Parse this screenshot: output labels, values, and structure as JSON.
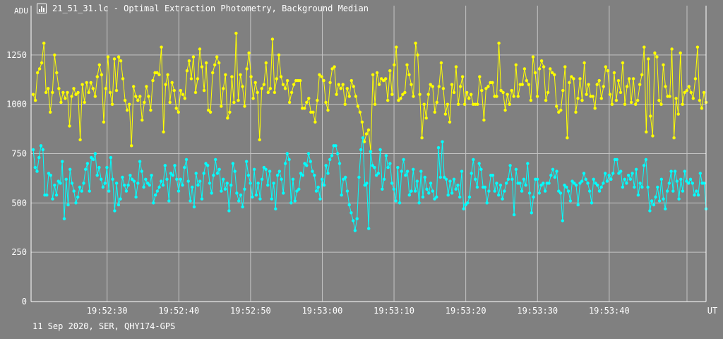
{
  "window": {
    "icon": "light-curve-icon",
    "title": "21_51_31.lc - Optimal Extraction Photometry, Background Median"
  },
  "footer": {
    "info": "11 Sep 2020, SER, QHY174-GPS"
  },
  "colors": {
    "background": "#808080",
    "grid": "#c4c4c4",
    "axis": "#ffffff",
    "series_yellow": "#ffff00",
    "series_cyan": "#00ffff"
  },
  "chart_data": {
    "type": "line",
    "ylabel": "ADU",
    "xlabel": "UT",
    "ylim": [
      0,
      1500
    ],
    "yticks": [
      0,
      250,
      500,
      750,
      1000,
      1250
    ],
    "xlim": [
      "19:52:19.4",
      "19:53:53.5"
    ],
    "xticks": [
      "19:52:30",
      "19:52:40",
      "19:52:50",
      "19:53:00",
      "19:53:10",
      "19:53:20",
      "19:53:30",
      "19:53:40"
    ],
    "grid": true,
    "markers": "filled-circle",
    "series": [
      {
        "color": "#ffff00",
        "x_start": "19:52:19.7",
        "x_end": "19:53:53.5",
        "values": [
          1050,
          1020,
          1160,
          1180,
          1210,
          1310,
          1060,
          1080,
          960,
          1060,
          1250,
          1160,
          1080,
          1010,
          1060,
          1030,
          1060,
          890,
          1040,
          1080,
          1050,
          1060,
          820,
          1100,
          1010,
          1110,
          1060,
          1110,
          1080,
          1040,
          1140,
          1200,
          1150,
          910,
          1080,
          1240,
          1060,
          1000,
          1230,
          1070,
          1240,
          1220,
          1130,
          1020,
          970,
          1000,
          790,
          1090,
          1040,
          1020,
          1040,
          920,
          1010,
          1090,
          1040,
          970,
          1120,
          1160,
          1160,
          1150,
          1290,
          860,
          1100,
          1150,
          1010,
          1110,
          1070,
          980,
          960,
          1070,
          1050,
          1030,
          1170,
          1220,
          1130,
          1240,
          1060,
          1130,
          1280,
          1190,
          1070,
          1210,
          970,
          960,
          1160,
          1200,
          1240,
          1210,
          990,
          1080,
          1150,
          930,
          960,
          1140,
          1010,
          1360,
          1020,
          1150,
          1090,
          990,
          1180,
          1260,
          1140,
          1030,
          1110,
          1060,
          820,
          1080,
          1100,
          1210,
          1060,
          1080,
          1330,
          1060,
          1130,
          1250,
          1140,
          1100,
          1080,
          1120,
          1010,
          1060,
          1100,
          1120,
          1120,
          1120,
          980,
          980,
          1010,
          1030,
          960,
          960,
          910,
          1020,
          1150,
          1140,
          1120,
          1010,
          970,
          1110,
          1180,
          1190,
          1050,
          1100,
          1080,
          1100,
          1000,
          1080,
          1040,
          1120,
          1090,
          1040,
          990,
          960,
          910,
          810,
          850,
          870,
          760,
          1150,
          1000,
          1160,
          1100,
          1130,
          1120,
          1130,
          1020,
          1170,
          1050,
          1200,
          1290,
          1020,
          1030,
          1050,
          1060,
          1200,
          1150,
          1100,
          1040,
          1310,
          1250,
          1050,
          830,
          1000,
          930,
          1050,
          1100,
          1090,
          960,
          1010,
          1090,
          1210,
          1080,
          950,
          1000,
          910,
          1100,
          1060,
          1190,
          1000,
          1090,
          1140,
          1000,
          1060,
          1030,
          1050,
          1000,
          1000,
          1000,
          1140,
          1070,
          920,
          1080,
          1090,
          1110,
          1110,
          1040,
          1040,
          1310,
          1070,
          1060,
          970,
          1050,
          1000,
          1070,
          1040,
          1200,
          1040,
          1100,
          1100,
          1180,
          1120,
          1100,
          1020,
          1240,
          1160,
          1040,
          1180,
          1220,
          1190,
          1020,
          1060,
          1180,
          1160,
          1150,
          990,
          960,
          970,
          1070,
          1190,
          830,
          1110,
          1140,
          1130,
          960,
          1030,
          1130,
          1020,
          1210,
          1050,
          1100,
          1040,
          1040,
          980,
          1100,
          1120,
          1030,
          1090,
          1190,
          1170,
          1050,
          1000,
          1160,
          1020,
          1120,
          1060,
          1210,
          1000,
          1090,
          1130,
          1010,
          1130,
          1000,
          1020,
          1100,
          1150,
          1290,
          860,
          1230,
          940,
          840,
          1260,
          1240,
          1020,
          1000,
          1200,
          1090,
          1040,
          1040,
          1280,
          830,
          1030,
          950,
          1260,
          1000,
          1060,
          1070,
          1090,
          1060,
          1030,
          1130,
          1290,
          1020,
          980,
          1060,
          1010
        ]
      },
      {
        "color": "#00ffff",
        "x_start": "19:52:19.7",
        "x_end": "19:53:53.5",
        "values": [
          770,
          680,
          660,
          730,
          790,
          770,
          540,
          540,
          650,
          640,
          520,
          590,
          540,
          610,
          600,
          710,
          420,
          620,
          490,
          670,
          600,
          560,
          500,
          530,
          580,
          560,
          600,
          670,
          700,
          560,
          730,
          720,
          750,
          640,
          680,
          620,
          580,
          600,
          680,
          560,
          730,
          620,
          460,
          600,
          490,
          520,
          630,
          590,
          560,
          590,
          640,
          620,
          610,
          530,
          600,
          710,
          660,
          580,
          620,
          600,
          590,
          640,
          500,
          540,
          560,
          580,
          610,
          590,
          690,
          620,
          510,
          650,
          640,
          690,
          620,
          560,
          620,
          590,
          680,
          720,
          610,
          510,
          580,
          480,
          650,
          590,
          610,
          520,
          650,
          700,
          690,
          600,
          550,
          640,
          720,
          650,
          670,
          560,
          620,
          570,
          600,
          460,
          590,
          700,
          660,
          550,
          510,
          540,
          480,
          570,
          710,
          640,
          600,
          530,
          670,
          540,
          600,
          520,
          620,
          680,
          670,
          590,
          660,
          520,
          600,
          470,
          640,
          660,
          620,
          550,
          700,
          750,
          720,
          500,
          620,
          510,
          560,
          570,
          650,
          640,
          700,
          690,
          750,
          710,
          660,
          640,
          560,
          580,
          520,
          620,
          590,
          690,
          650,
          720,
          740,
          790,
          790,
          750,
          700,
          540,
          620,
          630,
          560,
          490,
          450,
          410,
          360,
          420,
          630,
          770,
          830,
          590,
          600,
          370,
          760,
          690,
          680,
          640,
          650,
          770,
          570,
          620,
          740,
          680,
          700,
          600,
          570,
          510,
          680,
          500,
          660,
          720,
          640,
          660,
          540,
          560,
          670,
          560,
          610,
          500,
          660,
          530,
          630,
          570,
          550,
          600,
          560,
          520,
          530,
          780,
          630,
          810,
          630,
          620,
          540,
          610,
          550,
          620,
          570,
          590,
          530,
          660,
          470,
          490,
          500,
          530,
          650,
          720,
          620,
          580,
          700,
          670,
          580,
          580,
          500,
          560,
          640,
          640,
          560,
          600,
          540,
          590,
          520,
          560,
          600,
          620,
          690,
          620,
          440,
          670,
          600,
          600,
          560,
          620,
          590,
          700,
          550,
          450,
          530,
          620,
          620,
          550,
          590,
          600,
          560,
          600,
          600,
          640,
          670,
          630,
          660,
          560,
          550,
          410,
          590,
          580,
          560,
          510,
          610,
          600,
          590,
          490,
          600,
          610,
          650,
          620,
          600,
          560,
          500,
          620,
          600,
          590,
          560,
          580,
          600,
          650,
          610,
          640,
          620,
          650,
          720,
          720,
          650,
          660,
          580,
          620,
          600,
          640,
          620,
          650,
          580,
          670,
          540,
          600,
          580,
          690,
          720,
          580,
          460,
          510,
          490,
          530,
          580,
          510,
          620,
          520,
          470,
          560,
          600,
          660,
          560,
          660,
          610,
          520,
          620,
          560,
          660,
          610,
          600,
          620,
          600,
          540,
          560,
          540,
          650,
          600,
          600,
          470
        ]
      }
    ]
  }
}
